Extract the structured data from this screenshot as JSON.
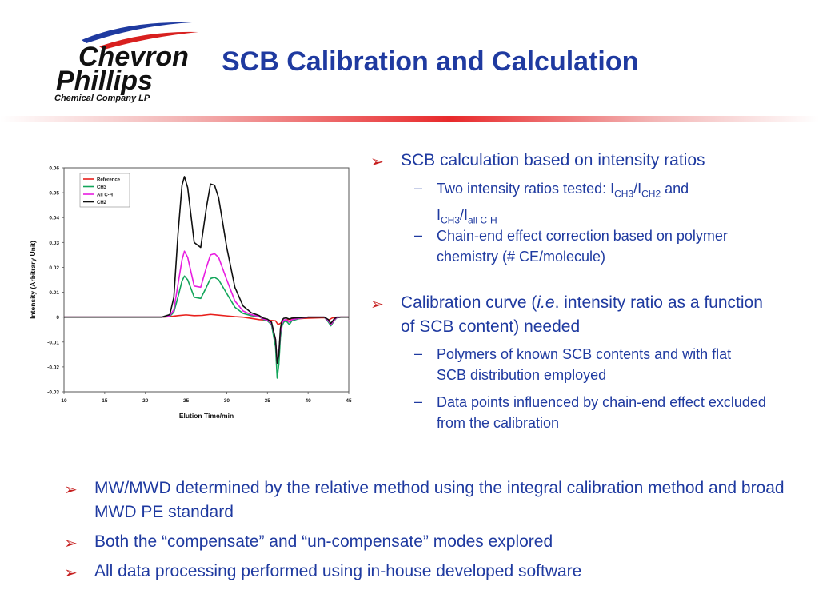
{
  "logo": {
    "line1": "Chevron",
    "line2": "Phillips",
    "line3": "Chemical Company LP"
  },
  "title": "SCB Calibration and Calculation",
  "bullets_right": {
    "b1": "SCB calculation based on intensity ratios",
    "b1_sub1": {
      "a": "Two intensity ratios tested: I",
      "s1": "CH3",
      "b": "/I",
      "s2": "CH2",
      "c": " and",
      "d": "I",
      "s3": "CH3",
      "e": "/I",
      "s4": "all C-H"
    },
    "b1_sub2": "Chain-end effect correction based on polymer chemistry (# CE/molecule)",
    "b2": {
      "a": "Calibration curve (",
      "i": "i.e",
      "b": ". intensity ratio as a function of SCB content) needed"
    },
    "b2_sub1": "Polymers of known SCB contents and with flat SCB distribution employed",
    "b2_sub2": "Data points influenced by chain-end effect excluded from the calibration"
  },
  "bullets_bottom": [
    "MW/MWD determined by the relative method using the integral calibration method and broad MWD PE standard",
    "Both the “compensate” and “un-compensate” modes explored",
    "All data processing performed using in-house developed software"
  ],
  "chart_data": {
    "type": "line",
    "xlabel": "Elution Time/min",
    "ylabel": "Intensity (Arbitrary Unit)",
    "xlim": [
      10,
      45
    ],
    "ylim": [
      -0.03,
      0.06
    ],
    "xticks": [
      "10",
      "15",
      "20",
      "25",
      "30",
      "35",
      "40",
      "45"
    ],
    "yticks": [
      "-0.03",
      "-0.02",
      "-0.01",
      "0",
      "0.01",
      "0.02",
      "0.03",
      "0.04",
      "0.05",
      "0.06"
    ],
    "legend_position": "top-left",
    "series": [
      {
        "name": "Reference",
        "color": "#e8201c",
        "x": [
          10,
          20,
          22,
          23,
          24,
          25,
          26,
          27,
          28,
          29,
          30,
          31,
          32,
          33,
          34,
          35,
          36,
          36.3,
          36.6,
          37,
          38,
          40,
          42,
          42.5,
          43,
          44,
          45
        ],
        "y": [
          0,
          0,
          0,
          0.0002,
          0.0006,
          0.0009,
          0.0006,
          0.0007,
          0.0011,
          0.0008,
          0.0005,
          0.0002,
          0,
          -0.0005,
          -0.001,
          -0.0012,
          -0.0015,
          -0.003,
          -0.0025,
          -0.0012,
          -0.0008,
          -0.0004,
          -0.0002,
          -0.0012,
          -0.0003,
          0,
          0
        ]
      },
      {
        "name": "CH3",
        "color": "#12a55a",
        "x": [
          10,
          20,
          22,
          23,
          23.5,
          24,
          24.5,
          24.8,
          25.2,
          26,
          26.8,
          27.5,
          28,
          28.5,
          29,
          30,
          31,
          32,
          33,
          34,
          34.5,
          35,
          35.5,
          36,
          36.2,
          36.4,
          36.6,
          36.8,
          37,
          37.3,
          37.7,
          38,
          39,
          40,
          41,
          42,
          42.5,
          42.8,
          43.2,
          43.5,
          44,
          45
        ],
        "y": [
          0,
          0,
          0,
          0.0003,
          0.002,
          0.008,
          0.0145,
          0.0165,
          0.015,
          0.008,
          0.0075,
          0.012,
          0.0155,
          0.016,
          0.015,
          0.0095,
          0.004,
          0.0015,
          0.0006,
          0.0002,
          -0.001,
          -0.0015,
          -0.003,
          -0.012,
          -0.0245,
          -0.019,
          -0.008,
          -0.0035,
          -0.002,
          -0.0015,
          -0.003,
          -0.0015,
          -0.0005,
          0,
          0,
          0,
          -0.002,
          -0.0035,
          -0.0015,
          -0.0003,
          0,
          0
        ]
      },
      {
        "name": "All C-H",
        "color": "#e81de0",
        "x": [
          10,
          20,
          22,
          23,
          23.5,
          24,
          24.5,
          24.8,
          25.2,
          26,
          26.8,
          27.5,
          28,
          28.5,
          29,
          30,
          31,
          32,
          33,
          34,
          34.5,
          35,
          35.5,
          36,
          36.2,
          36.4,
          36.6,
          36.8,
          37,
          37.3,
          37.7,
          38,
          39,
          40,
          41,
          42,
          42.5,
          42.8,
          43.2,
          43.5,
          44,
          45
        ],
        "y": [
          0,
          0,
          0,
          0.0005,
          0.003,
          0.013,
          0.023,
          0.0265,
          0.024,
          0.0125,
          0.012,
          0.02,
          0.025,
          0.0255,
          0.024,
          0.015,
          0.0065,
          0.0025,
          0.001,
          0.0003,
          -0.0008,
          -0.0012,
          -0.0025,
          -0.009,
          -0.0185,
          -0.0145,
          -0.006,
          -0.0025,
          -0.0012,
          -0.001,
          -0.002,
          -0.001,
          -0.0004,
          0,
          0,
          0,
          -0.0015,
          -0.003,
          -0.0012,
          -0.0002,
          0,
          0
        ]
      },
      {
        "name": "CH2",
        "color": "#111111",
        "x": [
          10,
          20,
          22,
          23,
          23.5,
          24,
          24.5,
          24.8,
          25.2,
          26,
          26.8,
          27.5,
          28,
          28.5,
          29,
          30,
          31,
          32,
          33,
          34,
          34.5,
          35,
          35.5,
          36,
          36.2,
          36.4,
          36.6,
          36.8,
          37,
          37.3,
          37.7,
          38,
          39,
          40,
          41,
          42,
          42.5,
          42.8,
          43.2,
          43.5,
          44,
          45
        ],
        "y": [
          0,
          0,
          0,
          0.001,
          0.008,
          0.033,
          0.053,
          0.0565,
          0.052,
          0.03,
          0.028,
          0.044,
          0.0535,
          0.053,
          0.048,
          0.028,
          0.012,
          0.0045,
          0.0018,
          0.0006,
          -0.0004,
          -0.0008,
          -0.002,
          -0.009,
          -0.0185,
          -0.015,
          -0.0045,
          -0.0012,
          -0.0005,
          -0.0003,
          -0.0008,
          -0.0004,
          -0.0002,
          0,
          0,
          0,
          -0.001,
          -0.0025,
          -0.0008,
          0,
          0,
          0
        ]
      }
    ]
  }
}
